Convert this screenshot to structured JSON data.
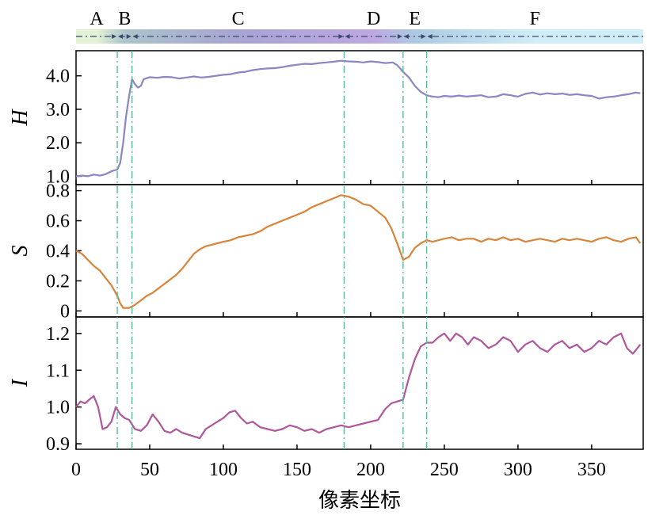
{
  "chart_data": {
    "type": "line",
    "xlabel": "像素坐标",
    "xlim": [
      0,
      385
    ],
    "x_ticks": [
      0,
      50,
      100,
      150,
      200,
      250,
      300,
      350
    ],
    "x_tick_labels": [
      "0",
      "50",
      "100",
      "150",
      "200",
      "250",
      "300",
      "350"
    ],
    "boundaries": [
      28,
      38,
      182,
      222,
      238
    ],
    "regions": [
      {
        "label": "A",
        "start": 0,
        "end": 28,
        "color": "#d9eec6"
      },
      {
        "label": "B",
        "start": 28,
        "end": 38,
        "color": "#8fb0b9"
      },
      {
        "label": "C",
        "start": 38,
        "end": 182,
        "color": "#8a86c4"
      },
      {
        "label": "D",
        "start": 182,
        "end": 222,
        "color": "#a98ad8"
      },
      {
        "label": "E",
        "start": 222,
        "end": 238,
        "color": "#8fb8d8"
      },
      {
        "label": "F",
        "start": 238,
        "end": 385,
        "color": "#bfe8f4"
      }
    ],
    "panels": [
      {
        "name": "H",
        "ylabel": "H",
        "color": "#8a86c4",
        "ylim": [
          0.75,
          4.75
        ],
        "y_ticks": [
          1.0,
          2.0,
          3.0,
          4.0
        ],
        "y_tick_labels": [
          "1.0",
          "2.0",
          "3.0",
          "4.0"
        ],
        "x": [
          0,
          4,
          8,
          12,
          16,
          20,
          24,
          28,
          30,
          32,
          34,
          36,
          38,
          40,
          42,
          44,
          46,
          50,
          55,
          60,
          65,
          70,
          75,
          80,
          85,
          90,
          95,
          100,
          105,
          110,
          115,
          120,
          125,
          130,
          135,
          140,
          145,
          150,
          155,
          160,
          165,
          170,
          175,
          180,
          185,
          190,
          195,
          200,
          205,
          210,
          215,
          218,
          222,
          226,
          230,
          234,
          238,
          242,
          246,
          250,
          255,
          260,
          265,
          270,
          275,
          280,
          285,
          290,
          295,
          300,
          305,
          310,
          315,
          320,
          325,
          330,
          335,
          340,
          345,
          350,
          355,
          360,
          365,
          370,
          375,
          380,
          383
        ],
        "values": [
          1.0,
          1.02,
          1.0,
          1.05,
          1.02,
          1.06,
          1.15,
          1.2,
          1.4,
          2.0,
          2.8,
          3.4,
          3.9,
          3.75,
          3.65,
          3.7,
          3.9,
          3.96,
          3.94,
          3.97,
          3.96,
          3.92,
          3.95,
          3.98,
          3.95,
          3.97,
          4.0,
          4.03,
          4.05,
          4.1,
          4.12,
          4.17,
          4.2,
          4.22,
          4.23,
          4.26,
          4.3,
          4.33,
          4.36,
          4.35,
          4.38,
          4.4,
          4.42,
          4.45,
          4.43,
          4.42,
          4.4,
          4.43,
          4.41,
          4.38,
          4.4,
          4.32,
          4.12,
          3.95,
          3.7,
          3.52,
          3.42,
          3.38,
          3.36,
          3.4,
          3.38,
          3.41,
          3.38,
          3.4,
          3.42,
          3.36,
          3.38,
          3.45,
          3.42,
          3.38,
          3.46,
          3.5,
          3.44,
          3.48,
          3.45,
          3.47,
          3.43,
          3.45,
          3.42,
          3.4,
          3.32,
          3.36,
          3.38,
          3.42,
          3.45,
          3.5,
          3.48
        ]
      },
      {
        "name": "S",
        "ylabel": "S",
        "color": "#d8843a",
        "ylim": [
          -0.04,
          0.84
        ],
        "y_ticks": [
          0,
          0.2,
          0.4,
          0.6,
          0.8
        ],
        "y_tick_labels": [
          "0",
          "0.2",
          "0.4",
          "0.6",
          "0.8"
        ],
        "x": [
          0,
          4,
          8,
          12,
          16,
          20,
          24,
          28,
          30,
          32,
          36,
          40,
          44,
          48,
          52,
          56,
          60,
          64,
          68,
          72,
          76,
          80,
          84,
          88,
          92,
          96,
          100,
          105,
          110,
          115,
          120,
          125,
          130,
          135,
          140,
          145,
          150,
          155,
          160,
          165,
          170,
          175,
          180,
          185,
          190,
          195,
          200,
          205,
          210,
          214,
          218,
          222,
          226,
          230,
          234,
          238,
          242,
          246,
          250,
          255,
          260,
          265,
          270,
          275,
          280,
          285,
          290,
          295,
          300,
          305,
          310,
          315,
          320,
          325,
          330,
          335,
          340,
          345,
          350,
          355,
          360,
          365,
          370,
          375,
          380,
          383
        ],
        "values": [
          0.4,
          0.38,
          0.34,
          0.3,
          0.27,
          0.22,
          0.17,
          0.1,
          0.05,
          0.02,
          0.02,
          0.04,
          0.07,
          0.1,
          0.12,
          0.15,
          0.18,
          0.21,
          0.24,
          0.28,
          0.33,
          0.38,
          0.41,
          0.43,
          0.44,
          0.45,
          0.46,
          0.47,
          0.49,
          0.5,
          0.51,
          0.53,
          0.56,
          0.58,
          0.6,
          0.62,
          0.64,
          0.66,
          0.69,
          0.71,
          0.73,
          0.75,
          0.77,
          0.76,
          0.74,
          0.71,
          0.7,
          0.66,
          0.62,
          0.55,
          0.45,
          0.34,
          0.36,
          0.42,
          0.45,
          0.47,
          0.46,
          0.47,
          0.48,
          0.49,
          0.47,
          0.48,
          0.48,
          0.46,
          0.48,
          0.47,
          0.49,
          0.47,
          0.48,
          0.46,
          0.47,
          0.48,
          0.47,
          0.46,
          0.48,
          0.47,
          0.48,
          0.47,
          0.46,
          0.48,
          0.49,
          0.47,
          0.46,
          0.48,
          0.49,
          0.45
        ]
      },
      {
        "name": "I",
        "ylabel": "I",
        "color": "#b0569a",
        "ylim": [
          0.885,
          1.245
        ],
        "y_ticks": [
          0.9,
          1.0,
          1.1,
          1.2
        ],
        "y_tick_labels": [
          "0.9",
          "1.0",
          "1.1",
          "1.2"
        ],
        "x": [
          0,
          3,
          6,
          9,
          12,
          15,
          18,
          21,
          24,
          27,
          30,
          33,
          36,
          40,
          44,
          48,
          52,
          56,
          60,
          64,
          68,
          72,
          76,
          80,
          84,
          88,
          92,
          96,
          100,
          104,
          108,
          112,
          116,
          120,
          125,
          130,
          135,
          140,
          145,
          150,
          155,
          160,
          165,
          170,
          175,
          180,
          185,
          190,
          195,
          200,
          205,
          210,
          214,
          218,
          222,
          226,
          230,
          234,
          238,
          242,
          246,
          250,
          254,
          258,
          262,
          266,
          270,
          275,
          280,
          285,
          290,
          295,
          300,
          305,
          310,
          315,
          320,
          325,
          330,
          335,
          340,
          345,
          350,
          355,
          360,
          365,
          370,
          374,
          378,
          383
        ],
        "values": [
          1.0,
          1.015,
          1.01,
          1.02,
          1.03,
          1.0,
          0.94,
          0.945,
          0.96,
          1.0,
          0.98,
          0.97,
          0.965,
          0.94,
          0.935,
          0.95,
          0.98,
          0.96,
          0.935,
          0.93,
          0.94,
          0.93,
          0.925,
          0.92,
          0.915,
          0.94,
          0.95,
          0.96,
          0.97,
          0.985,
          0.99,
          0.97,
          0.955,
          0.96,
          0.945,
          0.94,
          0.935,
          0.94,
          0.95,
          0.945,
          0.935,
          0.94,
          0.93,
          0.94,
          0.945,
          0.95,
          0.945,
          0.95,
          0.955,
          0.96,
          0.965,
          0.995,
          1.01,
          1.015,
          1.02,
          1.08,
          1.13,
          1.165,
          1.175,
          1.175,
          1.19,
          1.2,
          1.18,
          1.2,
          1.19,
          1.17,
          1.19,
          1.18,
          1.16,
          1.17,
          1.19,
          1.18,
          1.15,
          1.17,
          1.18,
          1.16,
          1.15,
          1.17,
          1.18,
          1.16,
          1.17,
          1.15,
          1.16,
          1.18,
          1.17,
          1.19,
          1.2,
          1.16,
          1.145,
          1.17
        ]
      }
    ]
  }
}
